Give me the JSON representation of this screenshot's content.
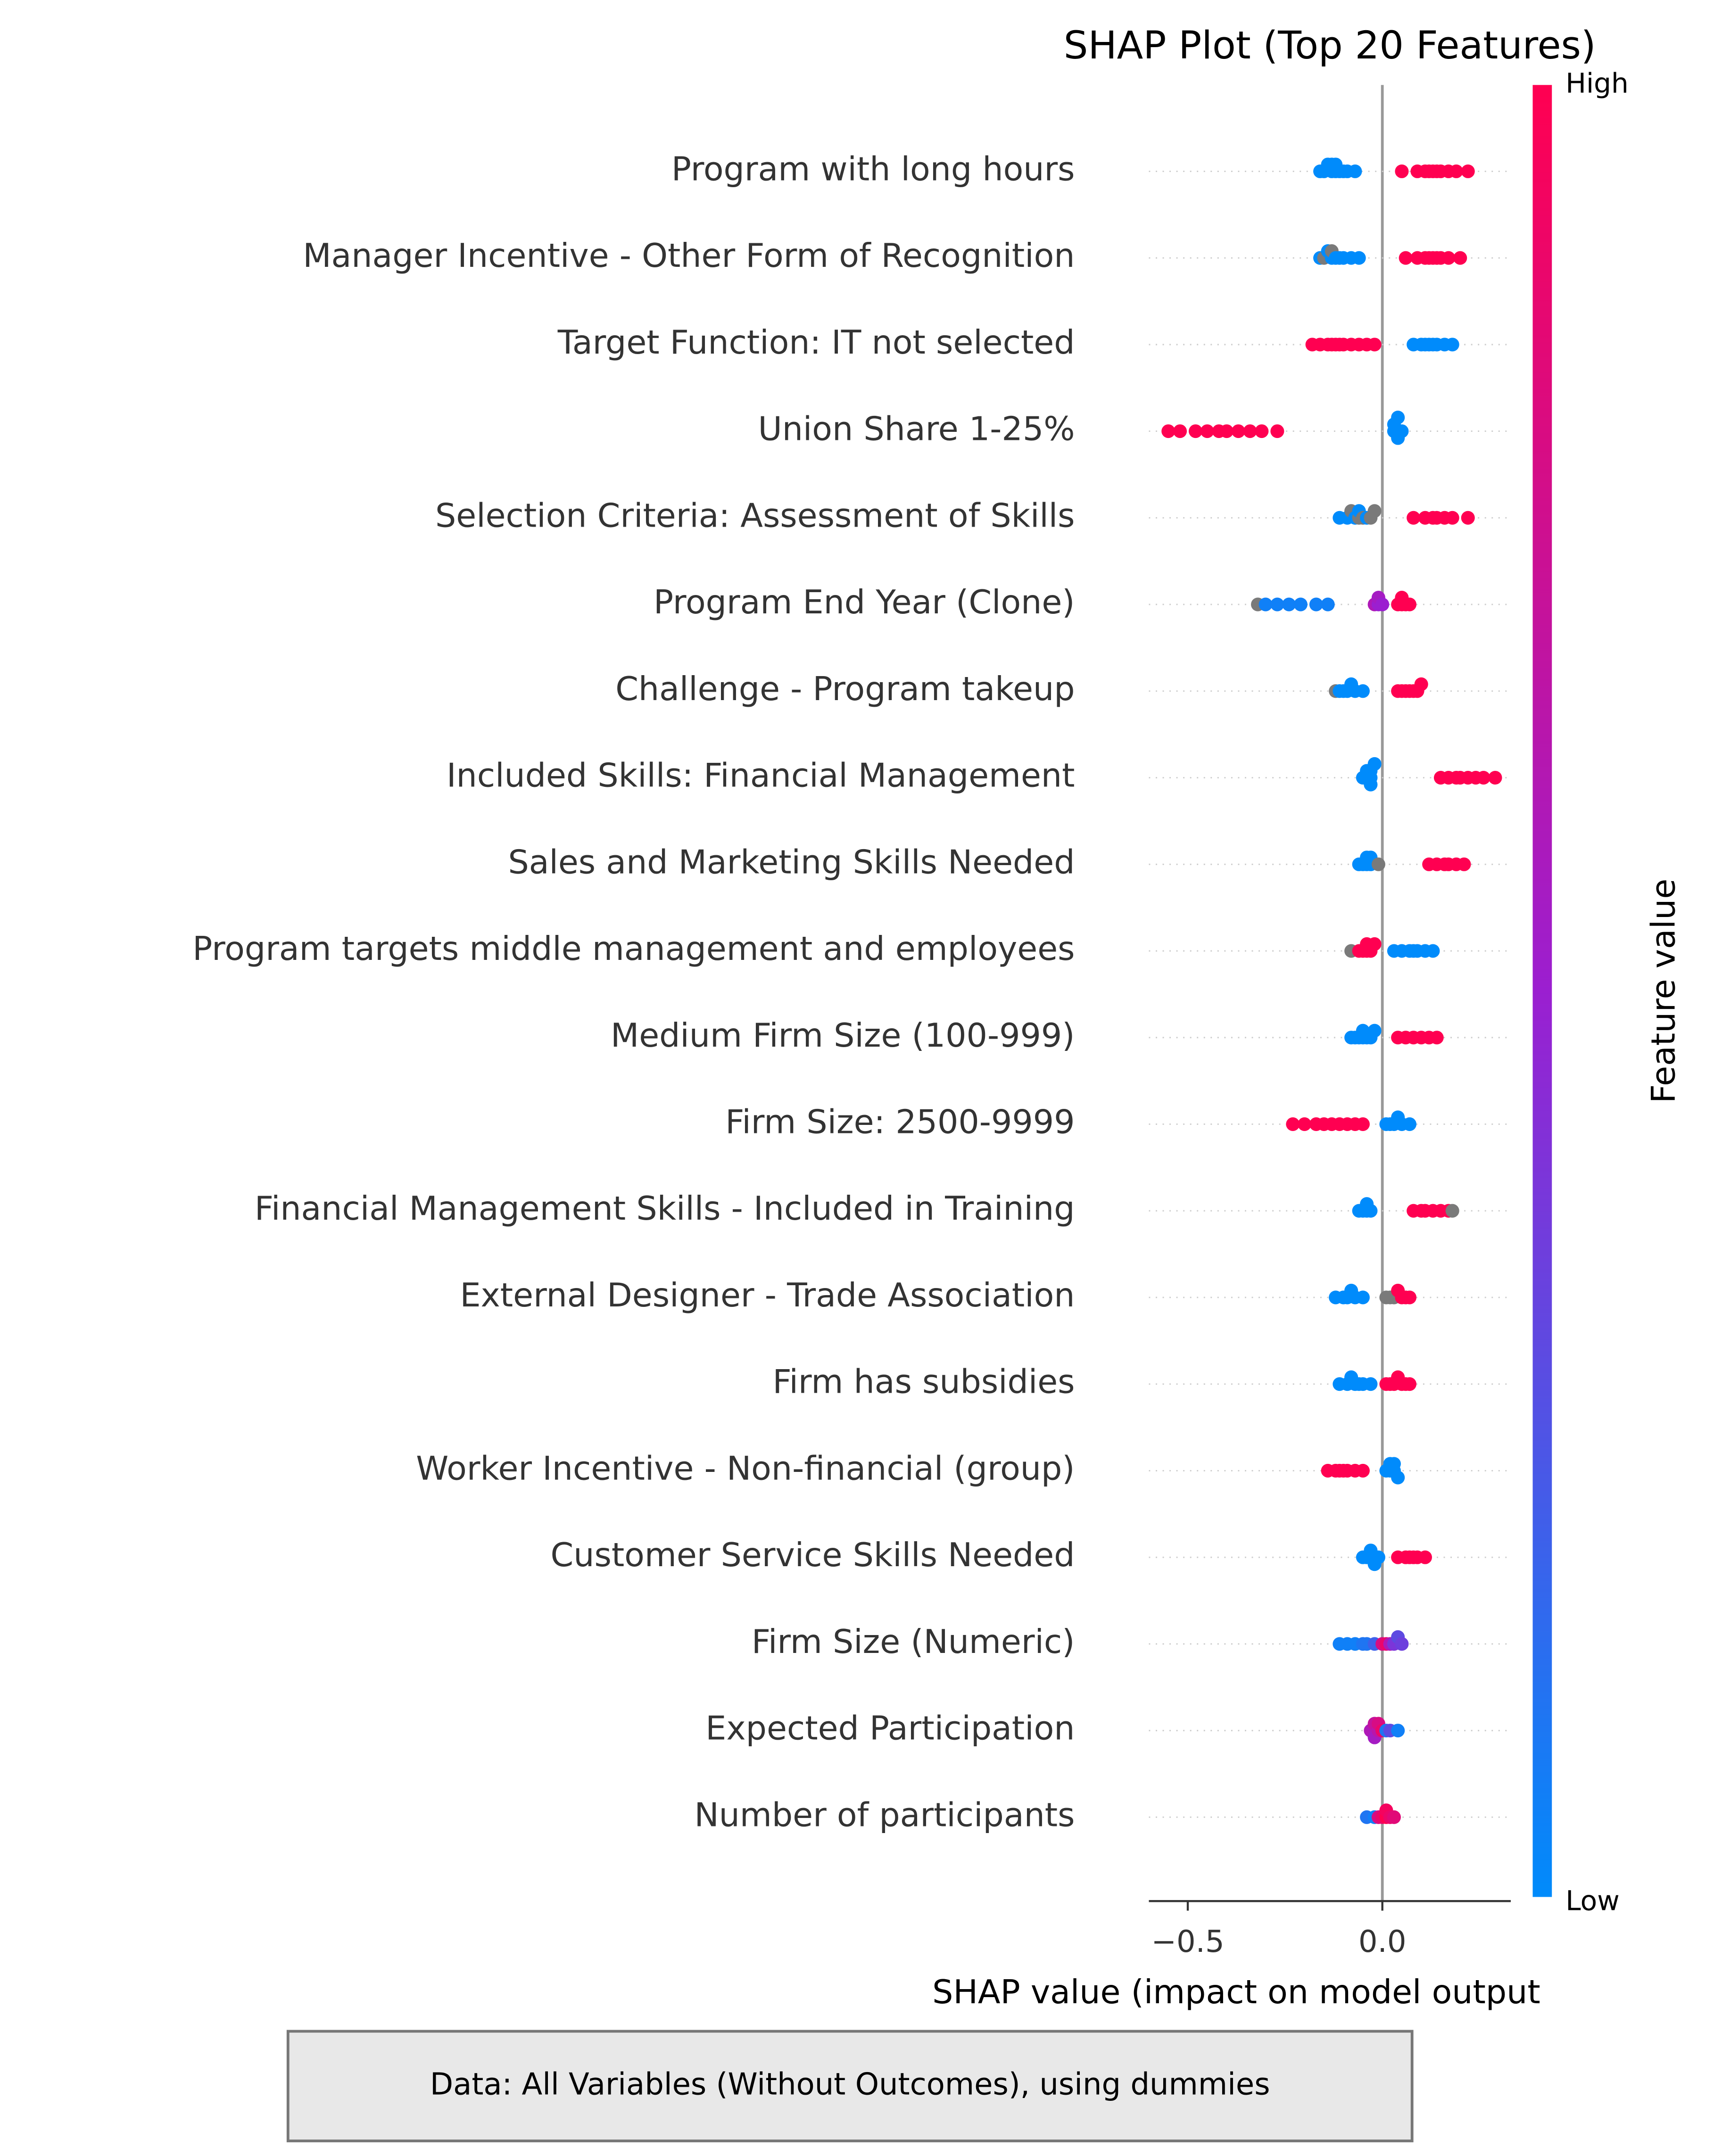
{
  "chart_data": {
    "type": "beeswarm",
    "title": "SHAP Plot (Top 20 Features)",
    "x_label": "SHAP value (impact on model output",
    "colorbar_label": "Feature value",
    "colorbar_high": "High",
    "colorbar_low": "Low",
    "footnote": "Data: All Variables (Without Outcomes), using dummies",
    "colormap": [
      "#008bfb",
      "#9b1fd0",
      "#ff0051"
    ],
    "missing_color": "#7a7a7a",
    "xlim": [
      -0.6,
      0.33
    ],
    "xticks": [
      {
        "value": -0.5,
        "label": "−0.5"
      },
      {
        "value": 0,
        "label": "0.0"
      }
    ],
    "categories": [
      "Program with long hours",
      "Manager Incentive - Other Form of Recognition",
      "Target Function: IT not selected",
      "Union Share 1-25%",
      "Selection Criteria: Assessment of Skills",
      "Program End Year (Clone)",
      "Challenge - Program takeup",
      "Included Skills: Financial Management",
      "Sales and Marketing Skills Needed",
      "Program targets middle management and employees",
      "Medium Firm Size (100-999)",
      "Firm Size: 2500-9999",
      "Financial Management Skills - Included in Training",
      "External Designer - Trade Association",
      "Firm has subsidies",
      "Worker Incentive - Non-financial (group)",
      "Customer Service Skills Needed",
      "Firm Size (Numeric)",
      "Expected Participation",
      "Number of participants"
    ],
    "shap_values": [
      [
        -0.16,
        -0.15,
        -0.14,
        -0.13,
        -0.13,
        -0.12,
        -0.12,
        -0.11,
        -0.1,
        -0.09,
        -0.07,
        0.05,
        0.09,
        0.11,
        0.12,
        0.13,
        0.14,
        0.15,
        0.17,
        0.19,
        0.22
      ],
      [
        -0.16,
        -0.15,
        -0.14,
        -0.13,
        -0.13,
        -0.12,
        -0.11,
        -0.1,
        -0.08,
        -0.06,
        0.06,
        0.09,
        0.11,
        0.12,
        0.13,
        0.14,
        0.15,
        0.17,
        0.2
      ],
      [
        -0.18,
        -0.16,
        -0.14,
        -0.13,
        -0.12,
        -0.11,
        -0.1,
        -0.08,
        -0.06,
        -0.04,
        -0.02,
        0.08,
        0.1,
        0.11,
        0.12,
        0.13,
        0.14,
        0.16,
        0.18
      ],
      [
        -0.55,
        -0.52,
        -0.48,
        -0.45,
        -0.42,
        -0.4,
        -0.37,
        -0.34,
        -0.31,
        -0.27,
        0.03,
        0.03,
        0.04,
        0.04,
        0.05
      ],
      [
        -0.11,
        -0.09,
        -0.08,
        -0.07,
        -0.06,
        -0.06,
        -0.05,
        -0.04,
        -0.03,
        -0.02,
        0.08,
        0.11,
        0.13,
        0.14,
        0.16,
        0.18,
        0.22
      ],
      [
        -0.32,
        -0.3,
        -0.27,
        -0.24,
        -0.21,
        -0.17,
        -0.14,
        -0.02,
        -0.01,
        -0.01,
        0.0,
        0.04,
        0.05,
        0.05,
        0.06,
        0.07
      ],
      [
        -0.12,
        -0.11,
        -0.1,
        -0.09,
        -0.08,
        -0.07,
        -0.05,
        0.04,
        0.05,
        0.06,
        0.07,
        0.08,
        0.09,
        0.1
      ],
      [
        -0.05,
        -0.04,
        -0.04,
        -0.03,
        -0.03,
        -0.03,
        -0.02,
        0.15,
        0.17,
        0.19,
        0.2,
        0.22,
        0.24,
        0.26,
        0.29
      ],
      [
        -0.06,
        -0.05,
        -0.04,
        -0.04,
        -0.03,
        -0.03,
        -0.01,
        0.12,
        0.14,
        0.16,
        0.17,
        0.19,
        0.21
      ],
      [
        -0.08,
        -0.06,
        -0.05,
        -0.04,
        -0.04,
        -0.03,
        -0.02,
        0.03,
        0.05,
        0.07,
        0.08,
        0.09,
        0.11,
        0.13
      ],
      [
        -0.08,
        -0.07,
        -0.06,
        -0.05,
        -0.05,
        -0.04,
        -0.03,
        -0.02,
        0.04,
        0.06,
        0.08,
        0.1,
        0.12,
        0.14
      ],
      [
        -0.23,
        -0.2,
        -0.17,
        -0.15,
        -0.13,
        -0.11,
        -0.09,
        -0.07,
        -0.05,
        0.01,
        0.02,
        0.03,
        0.04,
        0.05,
        0.07
      ],
      [
        -0.06,
        -0.05,
        -0.04,
        -0.04,
        -0.03,
        0.08,
        0.1,
        0.11,
        0.13,
        0.15,
        0.17,
        0.18
      ],
      [
        -0.12,
        -0.1,
        -0.09,
        -0.08,
        -0.07,
        -0.05,
        0.01,
        0.02,
        0.03,
        0.04,
        0.05,
        0.06,
        0.07
      ],
      [
        -0.11,
        -0.09,
        -0.08,
        -0.07,
        -0.06,
        -0.05,
        -0.03,
        0.01,
        0.02,
        0.03,
        0.04,
        0.05,
        0.06,
        0.07
      ],
      [
        -0.14,
        -0.12,
        -0.11,
        -0.1,
        -0.09,
        -0.07,
        -0.05,
        0.01,
        0.02,
        0.02,
        0.03,
        0.03,
        0.04
      ],
      [
        -0.05,
        -0.04,
        -0.03,
        -0.03,
        -0.02,
        -0.01,
        0.04,
        0.06,
        0.07,
        0.08,
        0.09,
        0.11
      ],
      [
        -0.11,
        -0.09,
        -0.07,
        -0.05,
        -0.04,
        -0.02,
        0.0,
        0.01,
        0.02,
        0.03,
        0.04,
        0.05
      ],
      [
        -0.03,
        -0.02,
        -0.02,
        -0.01,
        -0.01,
        0.0,
        0.01,
        0.02,
        0.04
      ],
      [
        -0.04,
        -0.02,
        -0.01,
        0.0,
        0.01,
        0.01,
        0.02,
        0.03
      ]
    ],
    "feature_values": [
      [
        0,
        0,
        0,
        0,
        0,
        0,
        0,
        0,
        0,
        0,
        0,
        1,
        1,
        1,
        1,
        1,
        1,
        1,
        1,
        1,
        1
      ],
      [
        0,
        null,
        0,
        0,
        null,
        0,
        0,
        0,
        0,
        0,
        1,
        1,
        1,
        1,
        1,
        1,
        1,
        1,
        1
      ],
      [
        1,
        1,
        1,
        1,
        1,
        1,
        1,
        1,
        1,
        1,
        1,
        0,
        0,
        0,
        0,
        0,
        0,
        0,
        0
      ],
      [
        1,
        1,
        1,
        1,
        1,
        1,
        1,
        1,
        1,
        1,
        0,
        0,
        0,
        0,
        0
      ],
      [
        0,
        0,
        null,
        0,
        null,
        0,
        null,
        0,
        null,
        null,
        1,
        1,
        1,
        1,
        1,
        1,
        1
      ],
      [
        null,
        0.05,
        0.05,
        0.05,
        0.05,
        0.05,
        0.05,
        0.6,
        0.5,
        0.55,
        0.5,
        1,
        1,
        1,
        1,
        1
      ],
      [
        null,
        0,
        0,
        0,
        0,
        0,
        0,
        1,
        1,
        1,
        1,
        1,
        1,
        1
      ],
      [
        0,
        0,
        0,
        0,
        0,
        0,
        0,
        1,
        1,
        1,
        1,
        1,
        1,
        1,
        1
      ],
      [
        0,
        0,
        0,
        0,
        0,
        0,
        null,
        1,
        1,
        1,
        1,
        1,
        1
      ],
      [
        null,
        1,
        1,
        1,
        1,
        1,
        1,
        0,
        0,
        0,
        0,
        0,
        0,
        0
      ],
      [
        0,
        0,
        0,
        0,
        0,
        0,
        0,
        0,
        1,
        1,
        1,
        1,
        1,
        1
      ],
      [
        1,
        1,
        1,
        1,
        1,
        1,
        1,
        1,
        1,
        0,
        0,
        0,
        0,
        0,
        0
      ],
      [
        0,
        0,
        0,
        0,
        0,
        1,
        1,
        1,
        1,
        1,
        1,
        null
      ],
      [
        0,
        0,
        0,
        0,
        0,
        0,
        null,
        null,
        null,
        1,
        1,
        1,
        1
      ],
      [
        0,
        0,
        0,
        0,
        0,
        0,
        0,
        1,
        1,
        1,
        1,
        1,
        1,
        1
      ],
      [
        1,
        1,
        1,
        1,
        1,
        1,
        1,
        0,
        0,
        0,
        0,
        0,
        0
      ],
      [
        0,
        0,
        0,
        0,
        0,
        0,
        1,
        1,
        1,
        1,
        1,
        1
      ],
      [
        0.05,
        0.05,
        0.05,
        0.1,
        0.1,
        0.2,
        0.8,
        0.9,
        0.6,
        0.4,
        0.3,
        0.35
      ],
      [
        0.6,
        0.7,
        0.55,
        0.65,
        0.8,
        0.9,
        0.1,
        0.3,
        0.05
      ],
      [
        0.1,
        0.05,
        0.8,
        0.9,
        1,
        0.95,
        0.9,
        0.85
      ]
    ]
  }
}
